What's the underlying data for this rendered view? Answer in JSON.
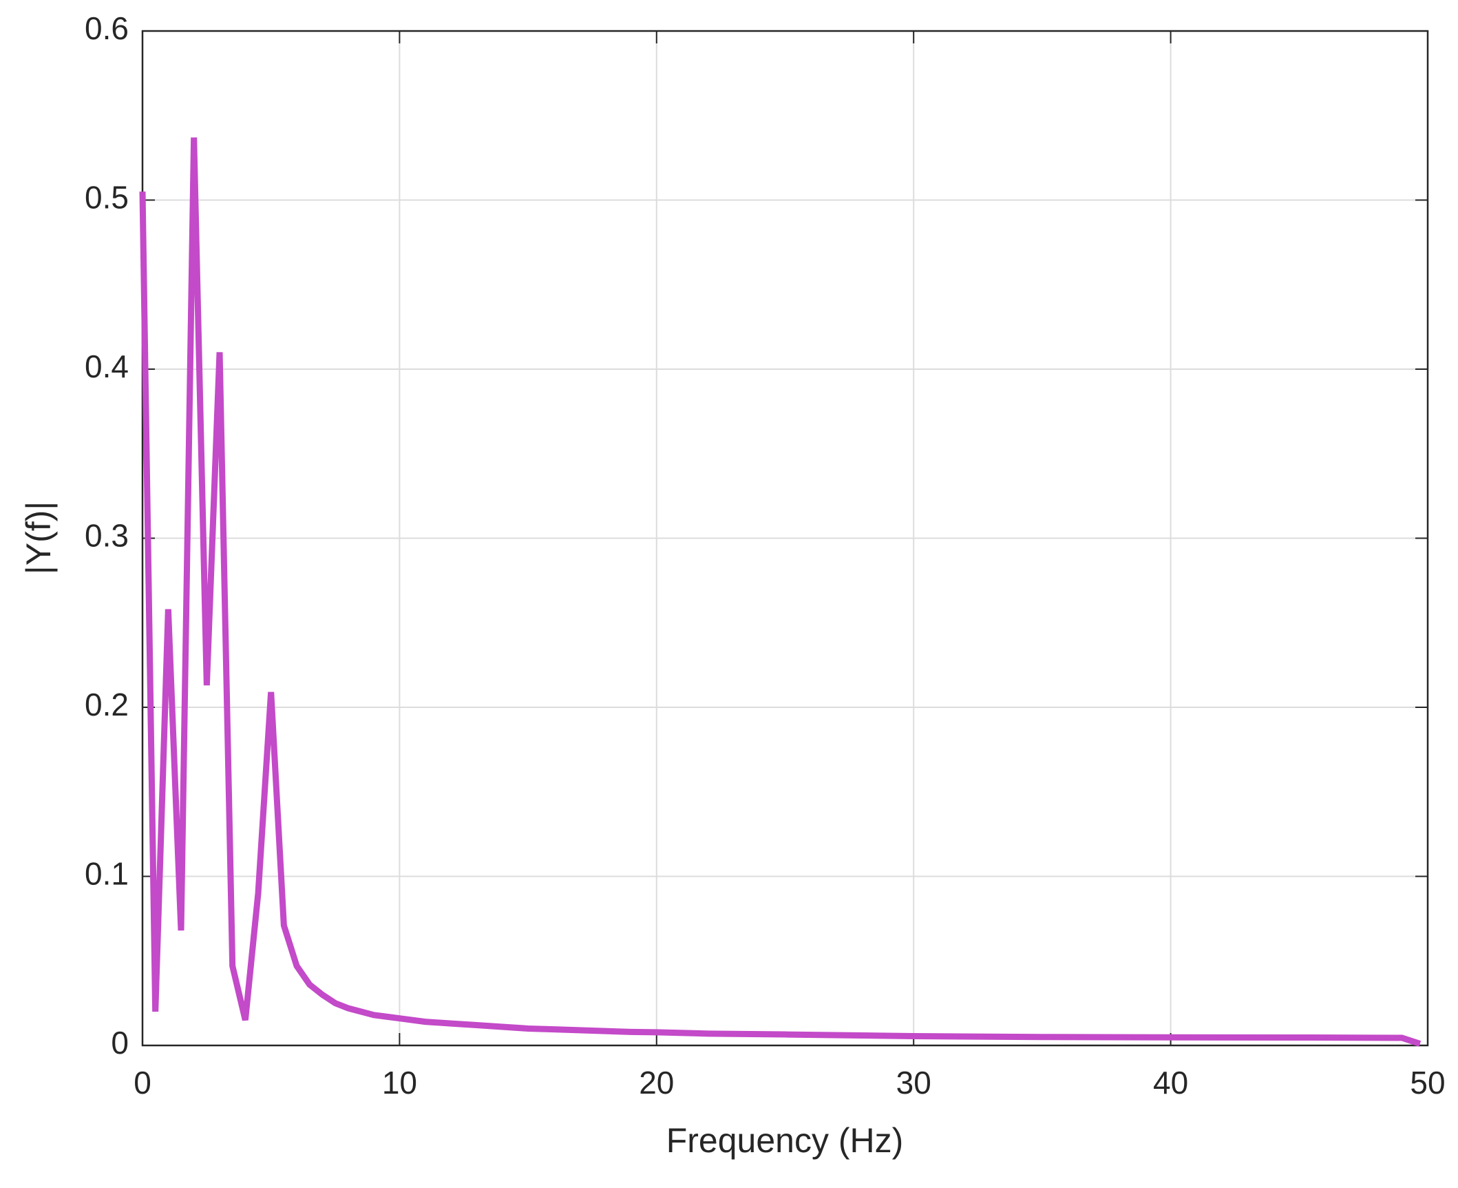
{
  "chart_data": {
    "type": "line",
    "xlabel": "Frequency (Hz)",
    "ylabel": "|Y(f)|",
    "x": [
      0,
      0.5,
      1,
      1.5,
      2,
      2.5,
      3,
      3.5,
      4,
      4.5,
      5,
      5.5,
      6,
      6.5,
      7,
      7.5,
      8,
      8.5,
      9,
      9.5,
      10,
      11,
      12,
      13,
      14,
      15,
      16,
      17,
      18,
      19,
      20,
      22,
      25,
      30,
      35,
      40,
      45,
      49,
      49.7
    ],
    "series": [
      {
        "color": "#c34ac8",
        "values": [
          0.505,
          0.02,
          0.258,
          0.068,
          0.537,
          0.213,
          0.41,
          0.047,
          0.015,
          0.09,
          0.209,
          0.071,
          0.047,
          0.036,
          0.03,
          0.025,
          0.022,
          0.02,
          0.018,
          0.017,
          0.016,
          0.014,
          0.013,
          0.012,
          0.011,
          0.01,
          0.0095,
          0.009,
          0.0085,
          0.008,
          0.0078,
          0.007,
          0.0065,
          0.0055,
          0.005,
          0.0048,
          0.0047,
          0.0045,
          0.001
        ]
      }
    ],
    "xlim": [
      0,
      50
    ],
    "xticks": [
      0,
      10,
      20,
      30,
      40,
      50
    ],
    "ylim": [
      0,
      0.6
    ],
    "yticks": [
      0,
      0.1,
      0.2,
      0.3,
      0.4,
      0.5,
      0.6
    ],
    "grid": true
  }
}
